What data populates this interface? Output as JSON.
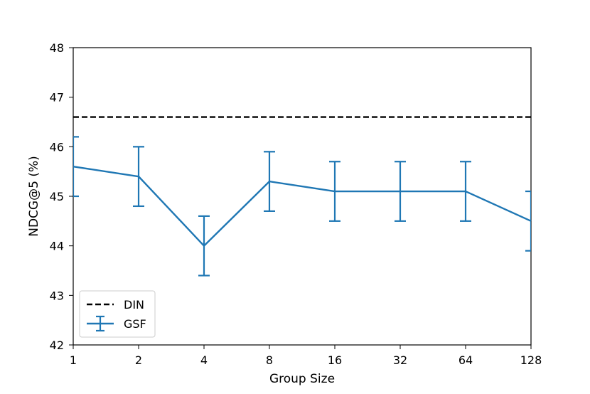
{
  "chart_data": {
    "type": "line",
    "title": "",
    "xlabel": "Group Size",
    "ylabel": "NDCG@5 (%)",
    "categories": [
      "1",
      "2",
      "4",
      "8",
      "16",
      "32",
      "64",
      "128"
    ],
    "ylim": [
      42,
      48
    ],
    "yticks": [
      "42",
      "43",
      "44",
      "45",
      "46",
      "47",
      "48"
    ],
    "grid": false,
    "legend_position": "lower-left",
    "series": [
      {
        "name": "DIN",
        "style": "dashed",
        "color": "#000000",
        "value": 46.6
      },
      {
        "name": "GSF",
        "style": "solid-with-errorbars",
        "color": "#1f77b4",
        "values": [
          45.6,
          45.4,
          44.0,
          45.3,
          45.1,
          45.1,
          45.1,
          44.5
        ],
        "error": [
          0.6,
          0.6,
          0.6,
          0.6,
          0.6,
          0.6,
          0.6,
          0.6
        ]
      }
    ]
  }
}
